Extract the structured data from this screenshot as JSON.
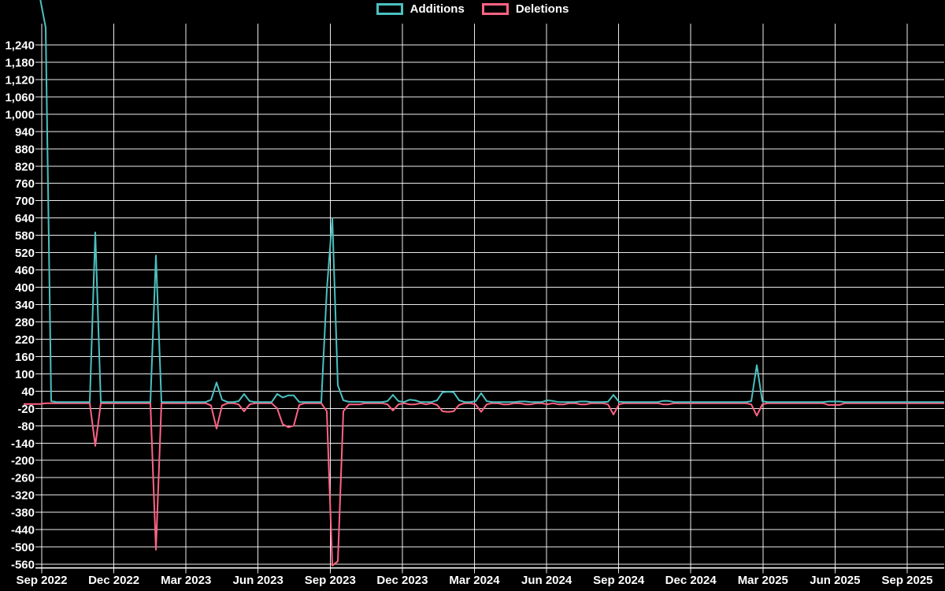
{
  "page": {
    "background": "#000000",
    "grid_color": "#ffffff",
    "text_color": "#ffffff"
  },
  "legend": {
    "items": [
      {
        "label": "Additions",
        "color": "#4bc0c0"
      },
      {
        "label": "Deletions",
        "color": "#ff6384"
      }
    ]
  },
  "chart_data": {
    "type": "line",
    "title": "",
    "xlabel": "",
    "ylabel": "",
    "legend": [
      "Additions",
      "Deletions"
    ],
    "legend_position": "top-center",
    "grid": true,
    "background": "#000000",
    "x_axis": {
      "tick_labels": [
        "Sep 2022",
        "Dec 2022",
        "Mar 2023",
        "Jun 2023",
        "Sep 2023",
        "Dec 2023",
        "Mar 2024",
        "Jun 2024",
        "Sep 2024",
        "Dec 2024",
        "Mar 2025",
        "Jun 2025",
        "Sep 2025"
      ],
      "point_cadence": "weekly"
    },
    "y_axis": {
      "min": -560,
      "max": 1240,
      "tick_step": 60,
      "tick_labels": [
        "1,240",
        "1,180",
        "1,120",
        "1,060",
        "1,000",
        "940",
        "880",
        "820",
        "760",
        "700",
        "640",
        "580",
        "520",
        "460",
        "400",
        "340",
        "280",
        "220",
        "160",
        "100",
        "40",
        "-20",
        "-80",
        "-140",
        "-200",
        "-260",
        "-320",
        "-380",
        "-440",
        "-500",
        "-560"
      ]
    },
    "weeks_total": 168,
    "series": [
      {
        "name": "Additions",
        "color": "#4bc0c0",
        "baseline_value": 2,
        "notable_points": [
          [
            0,
            1400
          ],
          [
            1,
            1400
          ],
          [
            2,
            1400
          ],
          [
            3,
            1400
          ],
          [
            4,
            1300
          ],
          [
            5,
            5
          ],
          [
            13,
            590
          ],
          [
            24,
            510
          ],
          [
            34,
            10
          ],
          [
            35,
            70
          ],
          [
            36,
            10
          ],
          [
            39,
            5
          ],
          [
            40,
            30
          ],
          [
            41,
            5
          ],
          [
            46,
            30
          ],
          [
            47,
            18
          ],
          [
            48,
            25
          ],
          [
            49,
            25
          ],
          [
            55,
            390
          ],
          [
            56,
            640
          ],
          [
            57,
            60
          ],
          [
            58,
            8
          ],
          [
            59,
            3
          ],
          [
            60,
            3
          ],
          [
            61,
            3
          ],
          [
            66,
            5
          ],
          [
            67,
            27
          ],
          [
            68,
            5
          ],
          [
            70,
            10
          ],
          [
            71,
            8
          ],
          [
            75,
            8
          ],
          [
            76,
            36
          ],
          [
            77,
            38
          ],
          [
            78,
            36
          ],
          [
            79,
            8
          ],
          [
            82,
            5
          ],
          [
            83,
            33
          ],
          [
            84,
            5
          ],
          [
            90,
            4
          ],
          [
            91,
            4
          ],
          [
            95,
            8
          ],
          [
            96,
            6
          ],
          [
            101,
            4
          ],
          [
            102,
            4
          ],
          [
            106,
            3
          ],
          [
            107,
            27
          ],
          [
            108,
            3
          ],
          [
            116,
            6
          ],
          [
            117,
            6
          ],
          [
            132,
            5
          ],
          [
            133,
            130
          ],
          [
            134,
            5
          ],
          [
            146,
            4
          ],
          [
            147,
            4
          ],
          [
            148,
            4
          ]
        ]
      },
      {
        "name": "Deletions",
        "color": "#ff6384",
        "baseline_value": -2,
        "notable_points": [
          [
            0,
            -5
          ],
          [
            1,
            -5
          ],
          [
            2,
            -5
          ],
          [
            3,
            -5
          ],
          [
            13,
            -150
          ],
          [
            24,
            -510
          ],
          [
            34,
            -10
          ],
          [
            35,
            -90
          ],
          [
            36,
            -10
          ],
          [
            39,
            -6
          ],
          [
            40,
            -30
          ],
          [
            41,
            -6
          ],
          [
            46,
            -20
          ],
          [
            47,
            -75
          ],
          [
            48,
            -85
          ],
          [
            49,
            -80
          ],
          [
            50,
            -8
          ],
          [
            55,
            -30
          ],
          [
            56,
            -565
          ],
          [
            57,
            -550
          ],
          [
            58,
            -30
          ],
          [
            59,
            -6
          ],
          [
            60,
            -6
          ],
          [
            61,
            -6
          ],
          [
            66,
            -6
          ],
          [
            67,
            -27
          ],
          [
            68,
            -6
          ],
          [
            70,
            -6
          ],
          [
            71,
            -6
          ],
          [
            73,
            -6
          ],
          [
            75,
            -8
          ],
          [
            76,
            -30
          ],
          [
            77,
            -32
          ],
          [
            78,
            -30
          ],
          [
            79,
            -8
          ],
          [
            82,
            -6
          ],
          [
            83,
            -32
          ],
          [
            84,
            -6
          ],
          [
            87,
            -6
          ],
          [
            88,
            -6
          ],
          [
            91,
            -6
          ],
          [
            92,
            -6
          ],
          [
            95,
            -6
          ],
          [
            97,
            -6
          ],
          [
            98,
            -6
          ],
          [
            101,
            -6
          ],
          [
            102,
            -6
          ],
          [
            106,
            -6
          ],
          [
            107,
            -41
          ],
          [
            108,
            -6
          ],
          [
            116,
            -6
          ],
          [
            117,
            -6
          ],
          [
            132,
            -6
          ],
          [
            133,
            -45
          ],
          [
            134,
            -6
          ],
          [
            146,
            -8
          ],
          [
            147,
            -8
          ],
          [
            148,
            -8
          ]
        ]
      }
    ]
  }
}
